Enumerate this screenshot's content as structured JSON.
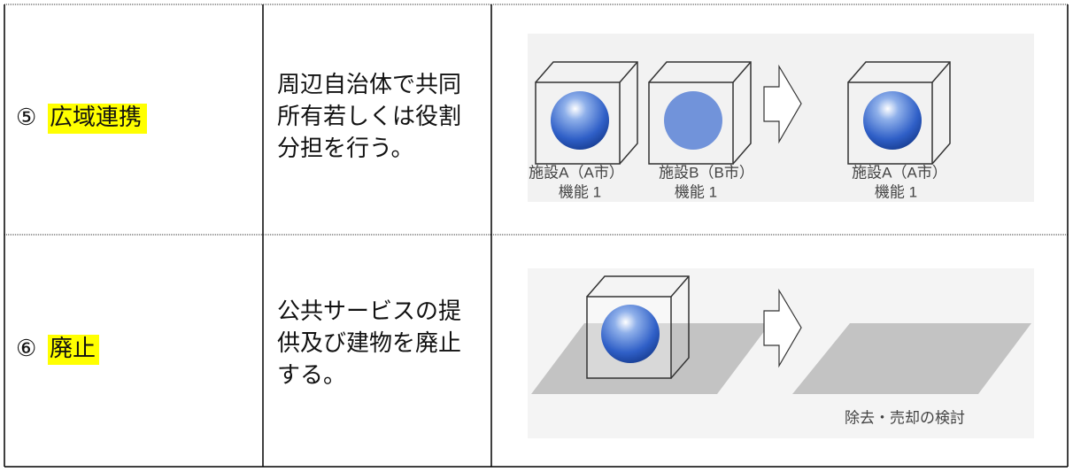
{
  "rows": [
    {
      "number": "⑤",
      "label": "広域連携",
      "description": [
        "周辺自治体で共同",
        "所有若しくは役割",
        "分担を行う。"
      ],
      "diagram": {
        "items": [
          {
            "name": "施設A（A市）",
            "function": "機能 1"
          },
          {
            "name": "施設B（B市）",
            "function": "機能 1"
          },
          {
            "name": "施設A（A市）",
            "function": "機能 1"
          }
        ]
      }
    },
    {
      "number": "⑥",
      "label": "廃止",
      "description": [
        "公共サービスの提",
        "供及び建物を廃止",
        "する。"
      ],
      "diagram": {
        "caption": "除去・売却の検討"
      }
    }
  ]
}
